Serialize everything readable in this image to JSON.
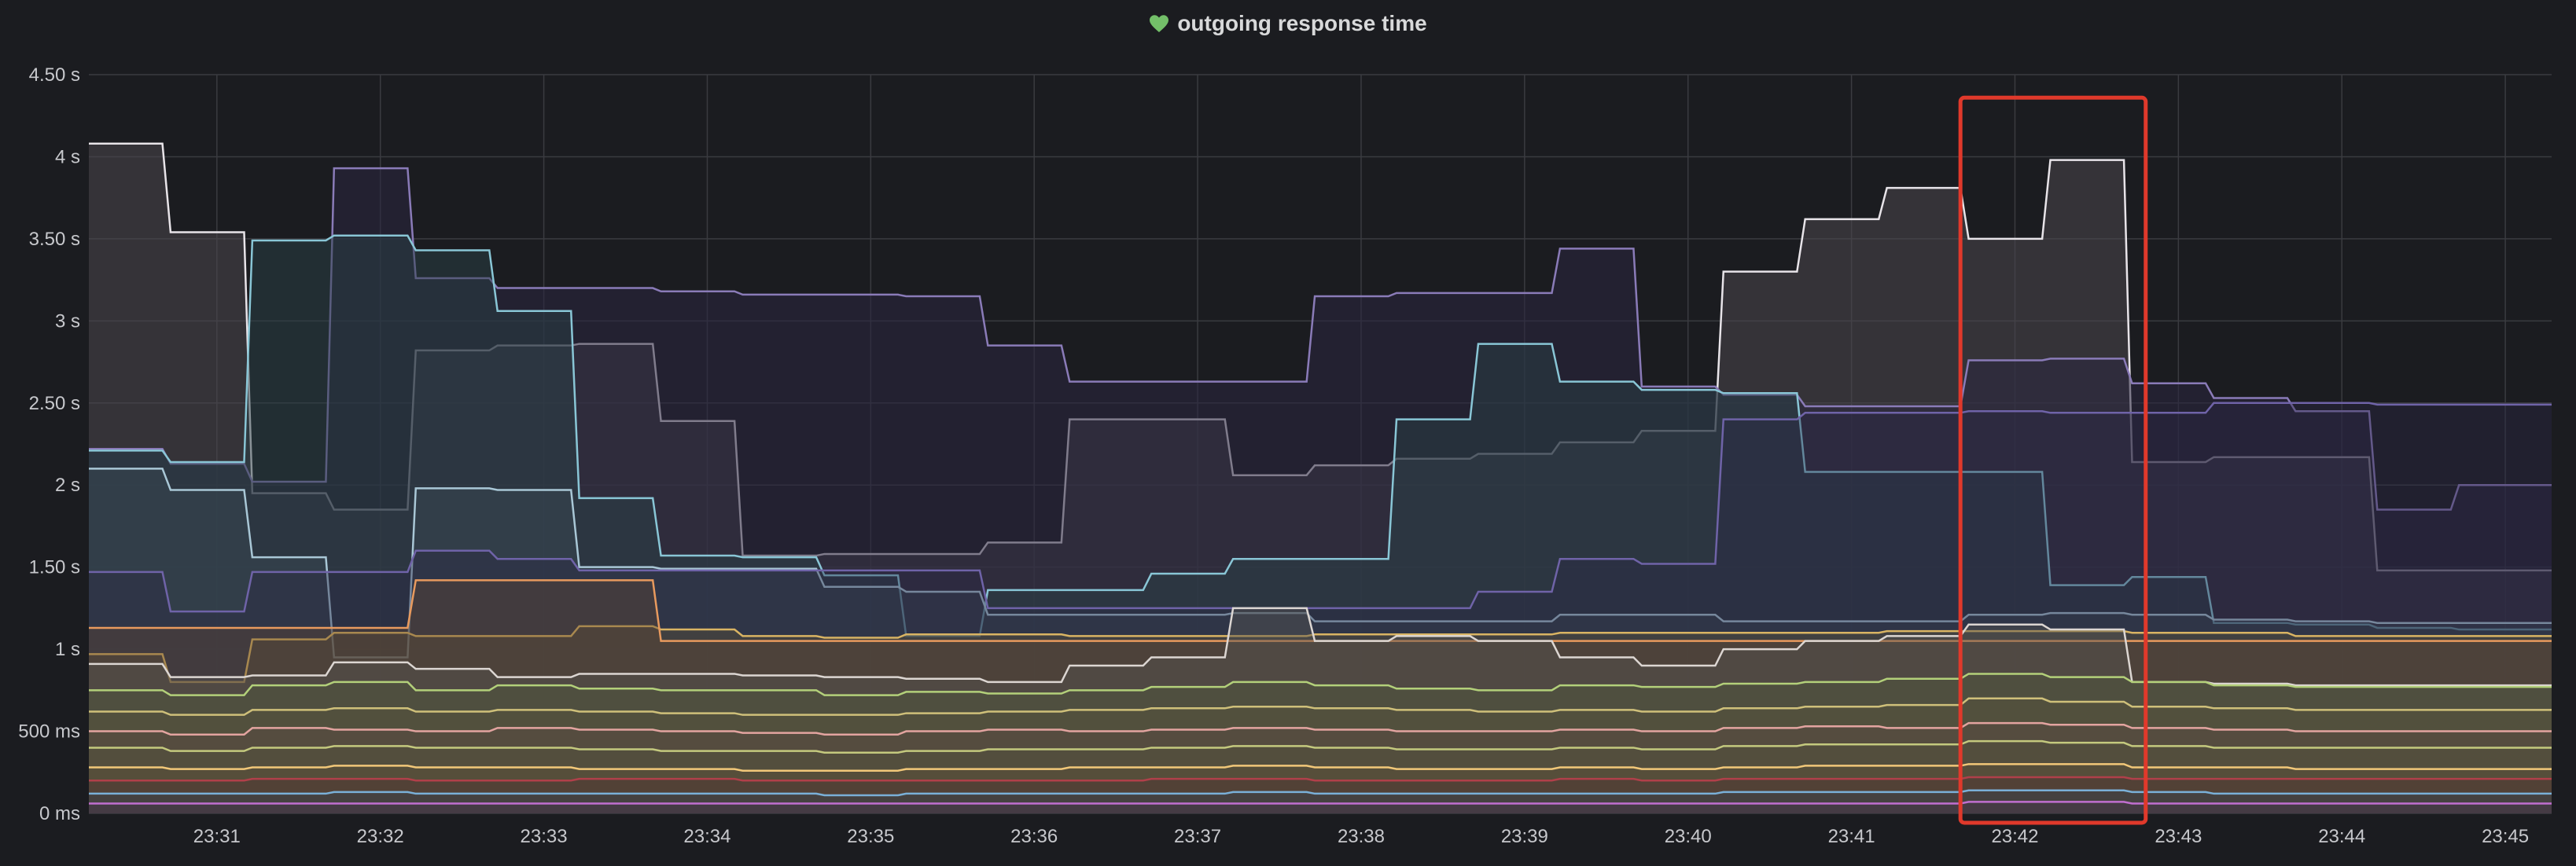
{
  "panel": {
    "title": "outgoing response time",
    "status_icon": "heart-icon",
    "status_color": "#73bf69"
  },
  "colors": {
    "background": "#1b1c20",
    "grid": "#3a3b40",
    "highlight": "#e0392b"
  },
  "chart_data": {
    "type": "area",
    "title": "outgoing response time",
    "x_unit": "time",
    "y_unit": "seconds",
    "ylim": [
      0,
      4.5
    ],
    "xlim": [
      "23:30:13",
      "23:45:17"
    ],
    "y_ticks": [
      {
        "value": 0,
        "label": "0 ms"
      },
      {
        "value": 0.5,
        "label": "500 ms"
      },
      {
        "value": 1,
        "label": "1 s"
      },
      {
        "value": 1.5,
        "label": "1.50 s"
      },
      {
        "value": 2,
        "label": "2 s"
      },
      {
        "value": 2.5,
        "label": "2.50 s"
      },
      {
        "value": 3,
        "label": "3 s"
      },
      {
        "value": 3.5,
        "label": "3.50 s"
      },
      {
        "value": 4,
        "label": "4 s"
      },
      {
        "value": 4.5,
        "label": "4.50 s"
      }
    ],
    "x_ticks": [
      "23:31",
      "23:32",
      "23:33",
      "23:34",
      "23:35",
      "23:36",
      "23:37",
      "23:38",
      "23:39",
      "23:40",
      "23:41",
      "23:42",
      "23:43",
      "23:44",
      "23:45"
    ],
    "x": [
      "23:30:13",
      "23:30:43",
      "23:31:13",
      "23:31:43",
      "23:32:13",
      "23:32:43",
      "23:33:13",
      "23:33:43",
      "23:34:13",
      "23:34:43",
      "23:35:13",
      "23:35:43",
      "23:36:13",
      "23:36:43",
      "23:37:13",
      "23:37:43",
      "23:38:13",
      "23:38:43",
      "23:39:13",
      "23:39:43",
      "23:40:13",
      "23:40:43",
      "23:41:13",
      "23:41:43",
      "23:42:13",
      "23:42:43",
      "23:43:13",
      "23:43:43",
      "23:44:13",
      "23:44:43",
      "23:45:13"
    ],
    "grid": true,
    "legend": "none",
    "highlight_box": {
      "x_from": "23:41:40",
      "x_to": "23:42:48",
      "y_from": 0,
      "y_to": 4.36
    },
    "series": [
      {
        "color": "#e8e4e9",
        "fill": "#4a474d",
        "fill_opacity": 0.55,
        "values": [
          4.08,
          3.54,
          1.95,
          1.85,
          2.82,
          2.85,
          2.86,
          2.39,
          1.57,
          1.58,
          1.58,
          1.65,
          2.4,
          2.4,
          2.06,
          2.12,
          2.16,
          2.19,
          2.26,
          2.33,
          3.3,
          3.62,
          3.81,
          3.5,
          3.98,
          2.14,
          2.17,
          2.17,
          1.48,
          1.48,
          1.48
        ]
      },
      {
        "color": "#8a7bb8",
        "fill": "#2a2740",
        "fill_opacity": 0.55,
        "values": [
          2.22,
          2.13,
          2.02,
          3.93,
          3.26,
          3.2,
          3.2,
          3.18,
          3.16,
          3.16,
          3.15,
          2.85,
          2.63,
          2.63,
          2.63,
          3.15,
          3.17,
          3.17,
          3.44,
          2.6,
          2.55,
          2.48,
          2.48,
          2.76,
          2.77,
          2.62,
          2.53,
          2.45,
          1.85,
          2.0,
          2.0
        ]
      },
      {
        "color": "#89c6d6",
        "fill": "#2a4045",
        "fill_opacity": 0.5,
        "values": [
          2.21,
          2.14,
          3.49,
          3.52,
          3.43,
          3.06,
          1.92,
          1.57,
          1.56,
          1.45,
          1.08,
          1.36,
          1.36,
          1.46,
          1.55,
          1.55,
          2.4,
          2.86,
          2.63,
          2.58,
          2.56,
          2.08,
          2.08,
          2.08,
          1.39,
          1.44,
          1.16,
          1.15,
          1.13,
          1.12,
          1.12
        ]
      },
      {
        "color": "#a9c7d6",
        "fill": "#3a4a55",
        "fill_opacity": 0.45,
        "values": [
          2.1,
          1.97,
          1.56,
          0.95,
          1.98,
          1.97,
          1.5,
          1.49,
          1.49,
          1.38,
          1.35,
          1.21,
          1.21,
          1.21,
          1.22,
          1.17,
          1.17,
          1.17,
          1.21,
          1.21,
          1.17,
          1.17,
          1.17,
          1.21,
          1.22,
          1.21,
          1.18,
          1.17,
          1.16,
          1.16,
          1.16
        ]
      },
      {
        "color": "#6f63a8",
        "fill": "#2b2845",
        "fill_opacity": 0.4,
        "values": [
          1.47,
          1.23,
          1.47,
          1.47,
          1.6,
          1.55,
          1.48,
          1.48,
          1.48,
          1.48,
          1.48,
          1.25,
          1.25,
          1.25,
          1.25,
          1.25,
          1.25,
          1.35,
          1.55,
          1.52,
          2.4,
          2.44,
          2.44,
          2.45,
          2.44,
          2.44,
          2.5,
          2.5,
          2.49,
          2.49,
          2.49
        ]
      },
      {
        "color": "#d9b463",
        "fill": "#5c5236",
        "fill_opacity": 0.4,
        "values": [
          0.97,
          0.8,
          1.06,
          1.1,
          1.08,
          1.08,
          1.14,
          1.12,
          1.08,
          1.07,
          1.09,
          1.09,
          1.08,
          1.08,
          1.08,
          1.09,
          1.09,
          1.09,
          1.1,
          1.1,
          1.1,
          1.1,
          1.11,
          1.11,
          1.11,
          1.1,
          1.1,
          1.08,
          1.08,
          1.08,
          1.08
        ]
      },
      {
        "color": "#e89a5e",
        "fill": "#5e4632",
        "fill_opacity": 0.4,
        "values": [
          1.13,
          1.13,
          1.13,
          1.13,
          1.42,
          1.42,
          1.42,
          1.05,
          1.05,
          1.05,
          1.05,
          1.05,
          1.05,
          1.05,
          1.05,
          1.05,
          1.05,
          1.05,
          1.05,
          1.05,
          1.05,
          1.05,
          1.05,
          1.05,
          1.05,
          1.05,
          1.05,
          1.05,
          1.05,
          1.05,
          1.05
        ]
      },
      {
        "color": "#dcd6d2",
        "fill": "#55524f",
        "fill_opacity": 0.45,
        "values": [
          0.91,
          0.83,
          0.84,
          0.92,
          0.88,
          0.83,
          0.85,
          0.85,
          0.84,
          0.83,
          0.82,
          0.8,
          0.9,
          0.95,
          1.25,
          1.05,
          1.08,
          1.05,
          0.95,
          0.9,
          1.0,
          1.05,
          1.08,
          1.15,
          1.12,
          0.8,
          0.79,
          0.78,
          0.78,
          0.78,
          0.78
        ]
      },
      {
        "color": "#b3d07a",
        "fill": "#4d5a3a",
        "fill_opacity": 0.4,
        "values": [
          0.75,
          0.72,
          0.78,
          0.8,
          0.75,
          0.78,
          0.76,
          0.75,
          0.75,
          0.72,
          0.74,
          0.73,
          0.75,
          0.77,
          0.8,
          0.78,
          0.76,
          0.75,
          0.78,
          0.77,
          0.79,
          0.8,
          0.82,
          0.85,
          0.83,
          0.8,
          0.78,
          0.77,
          0.77,
          0.77,
          0.77
        ]
      },
      {
        "color": "#cfc07a",
        "fill": "#5a5438",
        "fill_opacity": 0.35,
        "values": [
          0.62,
          0.6,
          0.63,
          0.64,
          0.62,
          0.63,
          0.62,
          0.61,
          0.6,
          0.6,
          0.61,
          0.62,
          0.63,
          0.64,
          0.65,
          0.64,
          0.63,
          0.62,
          0.63,
          0.62,
          0.64,
          0.65,
          0.66,
          0.7,
          0.68,
          0.65,
          0.64,
          0.63,
          0.63,
          0.63,
          0.63
        ]
      },
      {
        "color": "#e3a4a0",
        "fill": "#5c4544",
        "fill_opacity": 0.35,
        "values": [
          0.5,
          0.48,
          0.52,
          0.51,
          0.5,
          0.52,
          0.51,
          0.5,
          0.49,
          0.48,
          0.5,
          0.51,
          0.5,
          0.51,
          0.52,
          0.51,
          0.5,
          0.5,
          0.51,
          0.5,
          0.52,
          0.53,
          0.52,
          0.55,
          0.54,
          0.52,
          0.51,
          0.5,
          0.5,
          0.5,
          0.5
        ]
      },
      {
        "color": "#c4c97e",
        "fill": "#50533a",
        "fill_opacity": 0.35,
        "values": [
          0.4,
          0.38,
          0.4,
          0.41,
          0.4,
          0.4,
          0.39,
          0.38,
          0.38,
          0.37,
          0.38,
          0.39,
          0.39,
          0.4,
          0.41,
          0.4,
          0.39,
          0.39,
          0.4,
          0.39,
          0.41,
          0.42,
          0.42,
          0.44,
          0.43,
          0.41,
          0.4,
          0.4,
          0.4,
          0.4,
          0.4
        ]
      },
      {
        "color": "#f2c879",
        "fill": "#5d5036",
        "fill_opacity": 0.3,
        "values": [
          0.28,
          0.27,
          0.28,
          0.29,
          0.28,
          0.28,
          0.27,
          0.27,
          0.26,
          0.26,
          0.27,
          0.27,
          0.28,
          0.28,
          0.29,
          0.28,
          0.27,
          0.27,
          0.28,
          0.27,
          0.28,
          0.29,
          0.29,
          0.3,
          0.3,
          0.28,
          0.28,
          0.27,
          0.27,
          0.27,
          0.27
        ]
      },
      {
        "color": "#b0404a",
        "fill": "#4a2a30",
        "fill_opacity": 0.35,
        "values": [
          0.2,
          0.2,
          0.21,
          0.21,
          0.2,
          0.2,
          0.21,
          0.21,
          0.2,
          0.2,
          0.2,
          0.2,
          0.2,
          0.21,
          0.21,
          0.2,
          0.2,
          0.2,
          0.21,
          0.2,
          0.21,
          0.21,
          0.21,
          0.22,
          0.22,
          0.21,
          0.21,
          0.21,
          0.21,
          0.21,
          0.21
        ]
      },
      {
        "color": "#7ab0d8",
        "fill": "#2f4252",
        "fill_opacity": 0.35,
        "values": [
          0.12,
          0.12,
          0.12,
          0.13,
          0.12,
          0.12,
          0.12,
          0.12,
          0.12,
          0.11,
          0.12,
          0.12,
          0.12,
          0.12,
          0.13,
          0.12,
          0.12,
          0.12,
          0.12,
          0.12,
          0.13,
          0.13,
          0.13,
          0.14,
          0.14,
          0.13,
          0.12,
          0.12,
          0.12,
          0.12,
          0.12
        ]
      },
      {
        "color": "#c16fd0",
        "fill": "#45304c",
        "fill_opacity": 0.35,
        "values": [
          0.06,
          0.06,
          0.06,
          0.06,
          0.06,
          0.06,
          0.06,
          0.06,
          0.06,
          0.06,
          0.06,
          0.06,
          0.06,
          0.06,
          0.06,
          0.06,
          0.06,
          0.06,
          0.06,
          0.06,
          0.06,
          0.06,
          0.06,
          0.07,
          0.07,
          0.06,
          0.06,
          0.06,
          0.06,
          0.06,
          0.06
        ]
      }
    ]
  }
}
